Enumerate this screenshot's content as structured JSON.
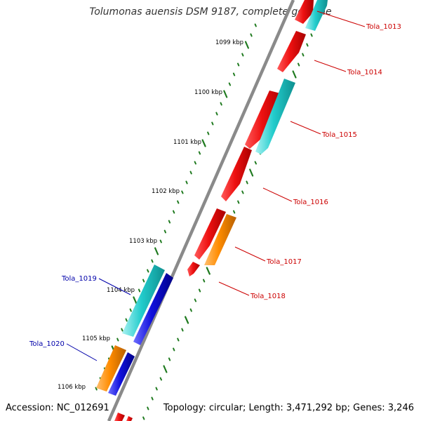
{
  "title": "Tolumonas auensis DSM 9187, complete genome",
  "accession": "Accession: NC_012691",
  "topology": "Topology: circular; Length: 3,471,292 bp; Genes: 3,246",
  "colors": {
    "backbone": "#8c8c8c",
    "ticks": "#1f7a1f",
    "forward_label": "#cc0000",
    "reverse_label": "#0000aa",
    "red_feature": "#ee1111",
    "cyan_feature": "#22cccc",
    "orange_feature": "#ff8c00",
    "blue_feature": "#1111dd"
  },
  "ruler": {
    "unit": "kbp",
    "labels": [
      "1099 kbp",
      "1100 kbp",
      "1101 kbp",
      "1102 kbp",
      "1103 kbp",
      "1104 kbp",
      "1105 kbp",
      "1106 kbp"
    ]
  },
  "genes": [
    {
      "id": "Tola_1013",
      "strand": "forward"
    },
    {
      "id": "Tola_1014",
      "strand": "forward"
    },
    {
      "id": "Tola_1015",
      "strand": "forward"
    },
    {
      "id": "Tola_1016",
      "strand": "forward"
    },
    {
      "id": "Tola_1017",
      "strand": "forward"
    },
    {
      "id": "Tola_1018",
      "strand": "forward"
    },
    {
      "id": "Tola_1019",
      "strand": "reverse"
    },
    {
      "id": "Tola_1020",
      "strand": "reverse"
    }
  ]
}
